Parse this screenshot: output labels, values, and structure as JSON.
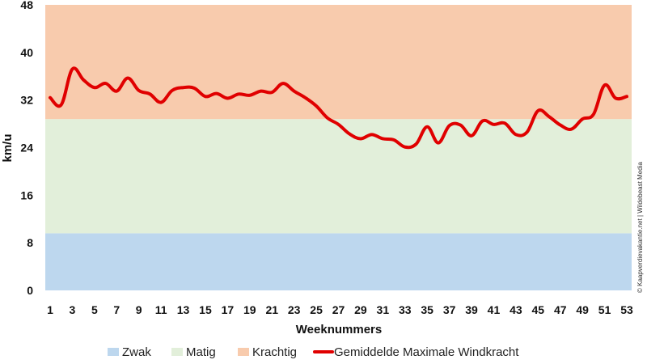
{
  "chart_data": {
    "type": "line",
    "xlabel": "Weeknummers",
    "ylabel": "km/u",
    "ylim": [
      0,
      48
    ],
    "xlim": [
      1,
      53
    ],
    "yticks": [
      0,
      8,
      16,
      24,
      32,
      40,
      48
    ],
    "xticks": [
      1,
      3,
      5,
      7,
      9,
      11,
      13,
      15,
      17,
      19,
      21,
      23,
      25,
      27,
      29,
      31,
      33,
      35,
      37,
      39,
      41,
      43,
      45,
      47,
      49,
      51,
      53
    ],
    "grid": false,
    "legend_position": "bottom",
    "bands": [
      {
        "name": "Zwak",
        "from": 0,
        "to": 9.6,
        "color": "#bdd7ee"
      },
      {
        "name": "Matig",
        "from": 9.6,
        "to": 28.8,
        "color": "#e2efda"
      },
      {
        "name": "Krachtig",
        "from": 28.8,
        "to": 48,
        "color": "#f8cbad"
      }
    ],
    "series": [
      {
        "name": "Gemiddelde Maximale Windkracht",
        "color": "#e00000",
        "x": [
          1,
          2,
          3,
          4,
          5,
          6,
          7,
          8,
          9,
          10,
          11,
          12,
          13,
          14,
          15,
          16,
          17,
          18,
          19,
          20,
          21,
          22,
          23,
          24,
          25,
          26,
          27,
          28,
          29,
          30,
          31,
          32,
          33,
          34,
          35,
          36,
          37,
          38,
          39,
          40,
          41,
          42,
          43,
          44,
          45,
          46,
          47,
          48,
          49,
          50,
          51,
          52,
          53
        ],
        "values": [
          32.4,
          31.2,
          37.2,
          35.4,
          34.1,
          34.8,
          33.5,
          35.7,
          33.6,
          33.0,
          31.6,
          33.6,
          34.1,
          34.0,
          32.6,
          33.1,
          32.3,
          33.0,
          32.8,
          33.5,
          33.3,
          34.8,
          33.5,
          32.4,
          31.0,
          29.0,
          27.9,
          26.3,
          25.5,
          26.2,
          25.5,
          25.3,
          24.1,
          24.6,
          27.5,
          24.8,
          27.7,
          27.8,
          26.0,
          28.5,
          27.9,
          28.1,
          26.2,
          26.6,
          30.2,
          29.2,
          27.8,
          27.1,
          28.8,
          29.6,
          34.5,
          32.3,
          32.6
        ]
      }
    ],
    "credit": "© Kaapverdievakantie.net | Wildebeast Media"
  }
}
